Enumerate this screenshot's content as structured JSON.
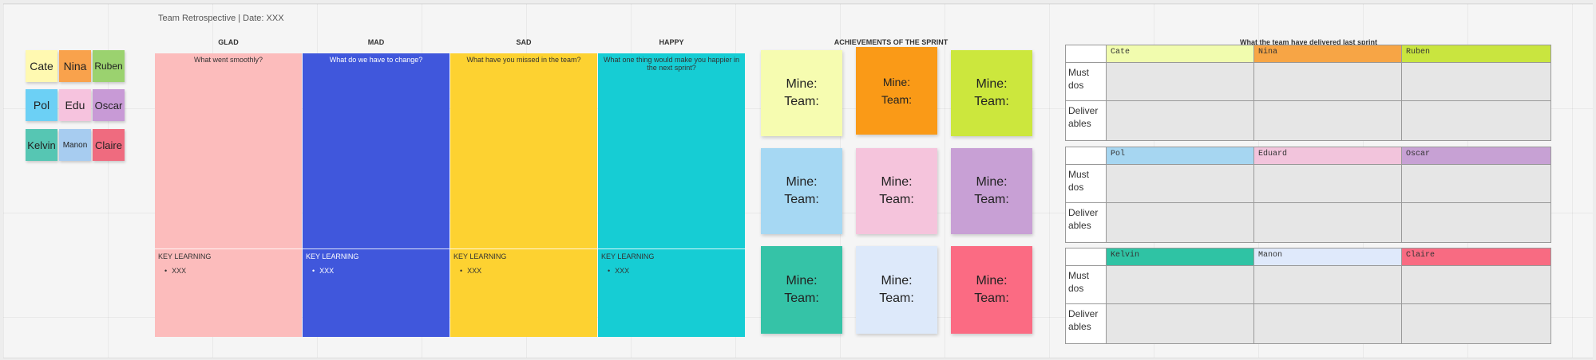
{
  "board": {
    "title": "Team Retrospective | Date: XXX"
  },
  "members": [
    {
      "name": "Cate",
      "color": "#fff9b1"
    },
    {
      "name": "Nina",
      "color": "#f9a24c"
    },
    {
      "name": "Ruben",
      "color": "#9bd26f"
    },
    {
      "name": "Pol",
      "color": "#6cd0f5"
    },
    {
      "name": "Edu",
      "color": "#f6c3de"
    },
    {
      "name": "Oscar",
      "color": "#c89ad6"
    },
    {
      "name": "Kelvin",
      "color": "#56c6b3"
    },
    {
      "name": "Manon",
      "color": "#a7ccf0"
    },
    {
      "name": "Claire",
      "color": "#ef6b7f"
    }
  ],
  "columns": [
    {
      "title": "GLAD",
      "prompt": "What went smoothly?",
      "color": "#fcbcbc",
      "key_learning": "KEY LEARNING",
      "bullet": "XXX"
    },
    {
      "title": "MAD",
      "prompt": "What do we have to change?",
      "color": "#4057dc",
      "key_learning": "KEY LEARNING",
      "bullet": "XXX"
    },
    {
      "title": "SAD",
      "prompt": "What have you missed in the team?",
      "color": "#fdd231",
      "key_learning": "KEY LEARNING",
      "bullet": "XXX"
    },
    {
      "title": "HAPPY",
      "prompt": "What one thing would make you happier in the next sprint?",
      "color": "#16cdd4",
      "key_learning": "KEY LEARNING",
      "bullet": "XXX"
    }
  ],
  "achievements": {
    "title": "ACHIEVEMENTS OF THE SPRINT",
    "cards": [
      {
        "line1": "Mine:",
        "line2": "Team:",
        "color": "#f6fcb0"
      },
      {
        "line1": "Mine:",
        "line2": "Team:",
        "color": "#fa9a17"
      },
      {
        "line1": "Mine:",
        "line2": "Team:",
        "color": "#cce73d"
      },
      {
        "line1": "Mine:",
        "line2": "Team:",
        "color": "#a6d8f3"
      },
      {
        "line1": "Mine:",
        "line2": "Team:",
        "color": "#f5c4dc"
      },
      {
        "line1": "Mine:",
        "line2": "Team:",
        "color": "#c8a0d5"
      },
      {
        "line1": "Mine:",
        "line2": "Team:",
        "color": "#35c3a7"
      },
      {
        "line1": "Mine:",
        "line2": "Team:",
        "color": "#dde9fa"
      },
      {
        "line1": "Mine:",
        "line2": "Team:",
        "color": "#fb6b83"
      }
    ]
  },
  "delivered": {
    "title": "What the team have delivered last sprint",
    "row_labels": [
      "Must dos",
      "Deliver ables"
    ],
    "tables": [
      {
        "names": [
          {
            "name": "Cate",
            "color": "#f1fcae"
          },
          {
            "name": "Nina",
            "color": "#f7a545"
          },
          {
            "name": "Ruben",
            "color": "#c9e53f"
          }
        ]
      },
      {
        "names": [
          {
            "name": "Pol",
            "color": "#a6d6f1"
          },
          {
            "name": "Eduard",
            "color": "#f2c4dc"
          },
          {
            "name": "Oscar",
            "color": "#c7a1d4"
          }
        ]
      },
      {
        "names": [
          {
            "name": "Kelvin",
            "color": "#2fc3a4"
          },
          {
            "name": "Manon",
            "color": "#dfe9fb"
          },
          {
            "name": "Claire",
            "color": "#f86b82"
          }
        ]
      }
    ]
  }
}
